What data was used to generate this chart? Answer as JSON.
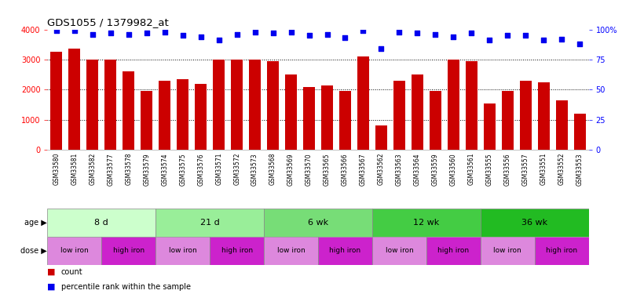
{
  "title": "GDS1055 / 1379982_at",
  "samples": [
    "GSM33580",
    "GSM33581",
    "GSM33582",
    "GSM33577",
    "GSM33578",
    "GSM33579",
    "GSM33574",
    "GSM33575",
    "GSM33576",
    "GSM33571",
    "GSM33572",
    "GSM33573",
    "GSM33568",
    "GSM33569",
    "GSM33570",
    "GSM33565",
    "GSM33566",
    "GSM33567",
    "GSM33562",
    "GSM33563",
    "GSM33564",
    "GSM33559",
    "GSM33560",
    "GSM33561",
    "GSM33555",
    "GSM33556",
    "GSM33557",
    "GSM33551",
    "GSM33552",
    "GSM33553"
  ],
  "counts": [
    3250,
    3350,
    3000,
    3000,
    2600,
    1950,
    2300,
    2350,
    2200,
    3000,
    3000,
    3000,
    2950,
    2500,
    2100,
    2150,
    1950,
    3100,
    820,
    2300,
    2500,
    1950,
    3000,
    2950,
    1550,
    1950,
    2300,
    2250,
    1650,
    1200
  ],
  "percentiles": [
    99,
    99,
    96,
    97,
    96,
    97,
    98,
    95,
    94,
    91,
    96,
    98,
    97,
    98,
    95,
    96,
    93,
    99,
    84,
    98,
    97,
    96,
    94,
    97,
    91,
    95,
    95,
    91,
    92,
    88
  ],
  "age_groups": [
    {
      "label": "8 d",
      "start": 0,
      "end": 6
    },
    {
      "label": "21 d",
      "start": 6,
      "end": 12
    },
    {
      "label": "6 wk",
      "start": 12,
      "end": 18
    },
    {
      "label": "12 wk",
      "start": 18,
      "end": 24
    },
    {
      "label": "36 wk",
      "start": 24,
      "end": 30
    }
  ],
  "dose_groups": [
    {
      "label": "low iron",
      "start": 0,
      "end": 3,
      "color": "#dd88dd"
    },
    {
      "label": "high iron",
      "start": 3,
      "end": 6,
      "color": "#cc22cc"
    },
    {
      "label": "low iron",
      "start": 6,
      "end": 9,
      "color": "#dd88dd"
    },
    {
      "label": "high iron",
      "start": 9,
      "end": 12,
      "color": "#cc22cc"
    },
    {
      "label": "low iron",
      "start": 12,
      "end": 15,
      "color": "#dd88dd"
    },
    {
      "label": "high iron",
      "start": 15,
      "end": 18,
      "color": "#cc22cc"
    },
    {
      "label": "low iron",
      "start": 18,
      "end": 21,
      "color": "#dd88dd"
    },
    {
      "label": "high iron",
      "start": 21,
      "end": 24,
      "color": "#cc22cc"
    },
    {
      "label": "low iron",
      "start": 24,
      "end": 27,
      "color": "#dd88dd"
    },
    {
      "label": "high iron",
      "start": 27,
      "end": 30,
      "color": "#cc22cc"
    }
  ],
  "age_colors": [
    "#ccffcc",
    "#99ee99",
    "#77dd77",
    "#44cc44",
    "#22bb22"
  ],
  "bar_color": "#cc0000",
  "dot_color": "#0000ee",
  "ylim_left": [
    0,
    4000
  ],
  "ylim_right": [
    0,
    100
  ],
  "yticks_left": [
    0,
    1000,
    2000,
    3000,
    4000
  ],
  "yticks_right": [
    0,
    25,
    50,
    75,
    100
  ],
  "bg_color": "#ffffff"
}
